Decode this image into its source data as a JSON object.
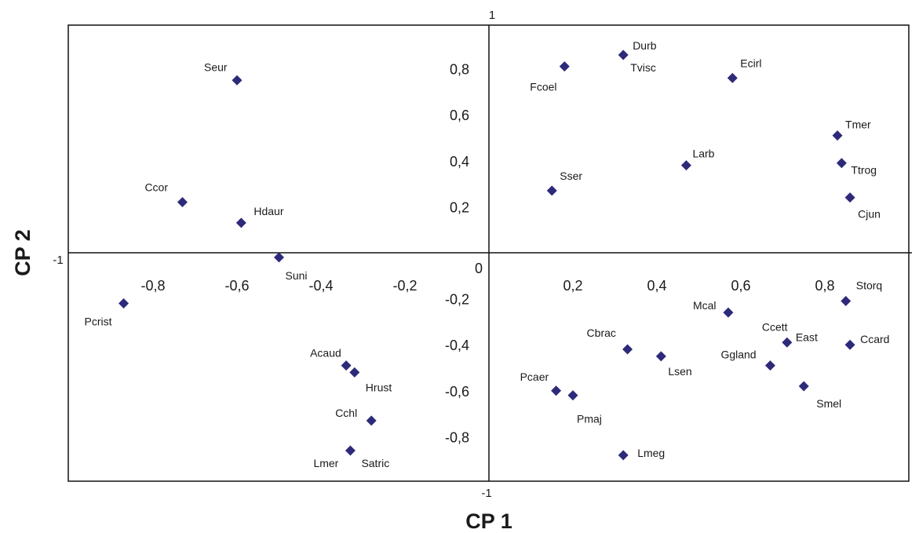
{
  "chart_data": {
    "type": "scatter",
    "xlabel": "CP 1",
    "ylabel": "CP 2",
    "xlim": [
      -1,
      1
    ],
    "ylim": [
      -1,
      1
    ],
    "grid": false,
    "marker_color": "#2e2a7a",
    "x_ticks": [
      {
        "value": -0.8,
        "label": "-0,8"
      },
      {
        "value": -0.6,
        "label": "-0,6"
      },
      {
        "value": -0.4,
        "label": "-0,4"
      },
      {
        "value": -0.2,
        "label": "-0,2"
      },
      {
        "value": 0.2,
        "label": "0,2"
      },
      {
        "value": 0.4,
        "label": "0,4"
      },
      {
        "value": 0.6,
        "label": "0,6"
      },
      {
        "value": 0.8,
        "label": "0,8"
      }
    ],
    "y_ticks": [
      {
        "value": 0.8,
        "label": "0,8"
      },
      {
        "value": 0.6,
        "label": "0,6"
      },
      {
        "value": 0.4,
        "label": "0,4"
      },
      {
        "value": 0.2,
        "label": "0,2"
      },
      {
        "value": -0.2,
        "label": "-0,2"
      },
      {
        "value": -0.4,
        "label": "-0,4"
      },
      {
        "value": -0.6,
        "label": "-0,6"
      },
      {
        "value": -0.8,
        "label": "-0,8"
      }
    ],
    "origin_label": "0",
    "axis_end_labels": {
      "top": "1",
      "bottom": "-1",
      "left": "-1"
    },
    "points": [
      {
        "name": "Seur",
        "x": -0.6,
        "y": 0.75
      },
      {
        "name": "Ccor",
        "x": -0.73,
        "y": 0.22
      },
      {
        "name": "Hdaur",
        "x": -0.59,
        "y": 0.13
      },
      {
        "name": "Suni",
        "x": -0.5,
        "y": -0.02
      },
      {
        "name": "Pcrist",
        "x": -0.87,
        "y": -0.22
      },
      {
        "name": "Acaud",
        "x": -0.34,
        "y": -0.49
      },
      {
        "name": "Hrust",
        "x": -0.32,
        "y": -0.52
      },
      {
        "name": "Cchl",
        "x": -0.28,
        "y": -0.73
      },
      {
        "name": "Lmer",
        "x": -0.33,
        "y": -0.86
      },
      {
        "name": "Satric",
        "x": -0.33,
        "y": -0.86
      },
      {
        "name": "Fcoel",
        "x": 0.18,
        "y": 0.81
      },
      {
        "name": "Durb",
        "x": 0.32,
        "y": 0.86
      },
      {
        "name": "Tvisc",
        "x": 0.32,
        "y": 0.86
      },
      {
        "name": "Ecirl",
        "x": 0.58,
        "y": 0.76
      },
      {
        "name": "Tmer",
        "x": 0.83,
        "y": 0.51
      },
      {
        "name": "Larb",
        "x": 0.47,
        "y": 0.38
      },
      {
        "name": "Ttrog",
        "x": 0.84,
        "y": 0.39
      },
      {
        "name": "Sser",
        "x": 0.15,
        "y": 0.27
      },
      {
        "name": "Cjun",
        "x": 0.86,
        "y": 0.24
      },
      {
        "name": "Storq",
        "x": 0.85,
        "y": -0.21
      },
      {
        "name": "Mcal",
        "x": 0.57,
        "y": -0.26
      },
      {
        "name": "Ccett",
        "x": 0.71,
        "y": -0.39
      },
      {
        "name": "East",
        "x": 0.71,
        "y": -0.39
      },
      {
        "name": "Ccard",
        "x": 0.86,
        "y": -0.4
      },
      {
        "name": "Cbrac",
        "x": 0.33,
        "y": -0.42
      },
      {
        "name": "Lsen",
        "x": 0.41,
        "y": -0.45
      },
      {
        "name": "Ggland",
        "x": 0.67,
        "y": -0.49
      },
      {
        "name": "Smel",
        "x": 0.75,
        "y": -0.58
      },
      {
        "name": "Pcaer",
        "x": 0.16,
        "y": -0.6
      },
      {
        "name": "Pmaj",
        "x": 0.2,
        "y": -0.62
      },
      {
        "name": "Lmeg",
        "x": 0.32,
        "y": -0.88
      }
    ]
  }
}
